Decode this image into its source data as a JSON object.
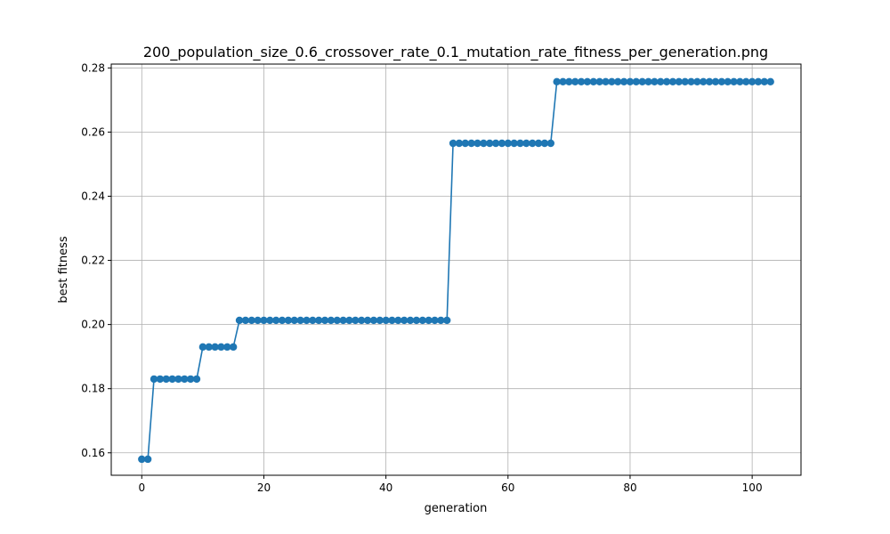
{
  "chart_data": {
    "type": "line",
    "title": "200_population_size_0.6_crossover_rate_0.1_mutation_rate_fitness_per_generation.png",
    "xlabel": "generation",
    "ylabel": "best fitness",
    "xlim": [
      -5,
      108
    ],
    "ylim": [
      0.153,
      0.2812
    ],
    "x_ticks": [
      0,
      20,
      40,
      60,
      80,
      100
    ],
    "y_ticks": [
      0.16,
      0.18,
      0.2,
      0.22,
      0.24,
      0.26,
      0.28
    ],
    "x_tick_labels": [
      "0",
      "20",
      "40",
      "60",
      "80",
      "100"
    ],
    "y_tick_labels": [
      "0.16",
      "0.18",
      "0.20",
      "0.22",
      "0.24",
      "0.26",
      "0.28"
    ],
    "grid": true,
    "marker": "circle",
    "line_color": "#1f77b4",
    "series": [
      {
        "segments": [
          {
            "from": 0,
            "to": 1,
            "value": 0.158
          },
          {
            "from": 2,
            "to": 9,
            "value": 0.183
          },
          {
            "from": 10,
            "to": 15,
            "value": 0.193
          },
          {
            "from": 16,
            "to": 50,
            "value": 0.2013
          },
          {
            "from": 51,
            "to": 67,
            "value": 0.2565
          },
          {
            "from": 68,
            "to": 103,
            "value": 0.2757
          }
        ]
      }
    ]
  }
}
